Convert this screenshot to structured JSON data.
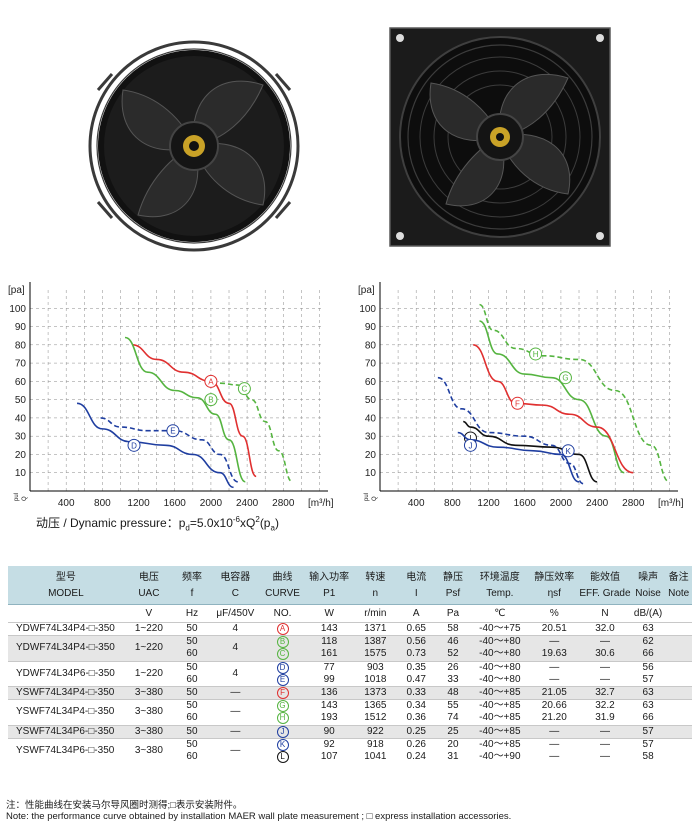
{
  "chart_data": [
    {
      "type": "line",
      "title": "",
      "xlabel": "[m³/h]",
      "ylabel": "[pa]",
      "xticks": [
        "0",
        "400",
        "800",
        "1200",
        "1600",
        "2000",
        "2400",
        "2800"
      ],
      "yticks": [
        "0",
        "10",
        "20",
        "30",
        "40",
        "50",
        "60",
        "70",
        "80",
        "90",
        "100"
      ],
      "xlim": [
        0,
        3250
      ],
      "ylim": [
        0,
        110
      ],
      "y_mark_labels": [
        "pul",
        "Q"
      ],
      "series": [
        {
          "name": "A",
          "color": "#e03030",
          "dash": false,
          "x": [
            1130,
            1400,
            1700,
            2000,
            2200,
            2350,
            2500
          ],
          "y": [
            80,
            72,
            65,
            60,
            48,
            30,
            8
          ],
          "label_at": [
            2000,
            60
          ]
        },
        {
          "name": "B",
          "color": "#55b440",
          "dash": false,
          "x": [
            1050,
            1300,
            1600,
            1850,
            2050,
            2200,
            2380
          ],
          "y": [
            84,
            65,
            55,
            51,
            42,
            28,
            5
          ],
          "label_at": [
            2000,
            50
          ]
        },
        {
          "name": "C",
          "color": "#55b440",
          "dash": true,
          "x": [
            2100,
            2300,
            2450,
            2600,
            2750,
            2900
          ],
          "y": [
            59,
            58,
            50,
            38,
            22,
            5
          ],
          "label_at": [
            2370,
            56
          ]
        },
        {
          "name": "D",
          "color": "#1f3ea0",
          "dash": false,
          "x": [
            520,
            800,
            1100,
            1500,
            1800,
            2100,
            2250
          ],
          "y": [
            48,
            34,
            27,
            25,
            20,
            10,
            2
          ],
          "label_at": [
            1150,
            25
          ]
        },
        {
          "name": "E",
          "color": "#1f3ea0",
          "dash": true,
          "x": [
            780,
            1000,
            1300,
            1600,
            1900,
            2100,
            2300
          ],
          "y": [
            40,
            35,
            33,
            33,
            28,
            20,
            5
          ],
          "label_at": [
            1580,
            33
          ]
        }
      ]
    },
    {
      "type": "line",
      "title": "",
      "xlabel": "[m³/h]",
      "ylabel": "[pa]",
      "xticks": [
        "0",
        "400",
        "800",
        "1200",
        "1600",
        "2000",
        "2400",
        "2800"
      ],
      "yticks": [
        "0",
        "10",
        "20",
        "30",
        "40",
        "50",
        "60",
        "70",
        "80",
        "90",
        "100"
      ],
      "xlim": [
        0,
        3250
      ],
      "ylim": [
        0,
        110
      ],
      "y_mark_labels": [
        "pul",
        "Q"
      ],
      "series": [
        {
          "name": "H",
          "color": "#55b440",
          "dash": true,
          "x": [
            1100,
            1250,
            1500,
            1800,
            2200,
            2600,
            3000,
            3200
          ],
          "y": [
            102,
            88,
            78,
            74,
            72,
            55,
            25,
            5
          ],
          "label_at": [
            1720,
            75
          ]
        },
        {
          "name": "G",
          "color": "#55b440",
          "dash": false,
          "x": [
            1100,
            1300,
            1600,
            1900,
            2200,
            2500,
            2700
          ],
          "y": [
            93,
            75,
            64,
            62,
            50,
            30,
            10
          ],
          "label_at": [
            2050,
            62
          ]
        },
        {
          "name": "F",
          "color": "#e03030",
          "dash": false,
          "x": [
            1030,
            1300,
            1500,
            1800,
            2100,
            2400,
            2800
          ],
          "y": [
            80,
            60,
            48,
            47,
            42,
            35,
            10
          ],
          "label_at": [
            1520,
            48
          ]
        },
        {
          "name": "I",
          "color": "#111111",
          "dash": false,
          "x": [
            920,
            1000,
            1200,
            1500,
            1900,
            2200,
            2400
          ],
          "y": [
            38,
            35,
            30,
            25,
            24,
            20,
            5
          ],
          "label_at": [
            1000,
            29
          ]
        },
        {
          "name": "J",
          "color": "#1f3ea0",
          "dash": false,
          "x": [
            860,
            1000,
            1300,
            1700,
            2000,
            2200
          ],
          "y": [
            32,
            28,
            24,
            22,
            20,
            5
          ],
          "label_at": [
            1000,
            25
          ]
        },
        {
          "name": "K",
          "color": "#1f3ea0",
          "dash": true,
          "x": [
            640,
            900,
            1200,
            1600,
            1900,
            2100,
            2250
          ],
          "y": [
            62,
            45,
            32,
            30,
            25,
            15,
            4
          ],
          "label_at": [
            2080,
            22
          ]
        }
      ]
    }
  ],
  "formula": {
    "label": "动压 / Dynamic pressure：",
    "expr": "p",
    "sub_d": "d",
    "eq": "=5.0x10",
    "sup_exp": "-6",
    "expr2": "xQ",
    "sup_2": "2",
    "expr3": "(p",
    "sub_a": "a",
    "close": ")"
  },
  "table": {
    "head_cn": [
      "型号",
      "电压",
      "频率",
      "电容器",
      "曲线",
      "输入功率",
      "转速",
      "电流",
      "静压",
      "环境温度",
      "静压效率",
      "能效值",
      "噪声",
      "备注"
    ],
    "head_en": [
      "MODEL",
      "UAC",
      "f",
      "C",
      "CURVE",
      "P1",
      "n",
      "I",
      "Psf",
      "Temp.",
      "ηsf",
      "EFF. Grade",
      "Noise",
      "Note"
    ],
    "units": [
      "",
      "V",
      "Hz",
      "μF/450V",
      "NO.",
      "W",
      "r/min",
      "A",
      "Pa",
      "℃",
      "%",
      "N",
      "dB/(A)",
      ""
    ],
    "groups": [
      {
        "model": "YDWF74L34P4-□-350",
        "voltage": "1~220",
        "cap": "4",
        "gray": false,
        "rows": [
          {
            "f": "50",
            "curve": "A",
            "color": "#e03030",
            "p1": "143",
            "n": "1371",
            "i": "0.65",
            "pa": "58",
            "temp": "-40～+75",
            "eff": "20.51",
            "grade": "32.0",
            "noise": "63"
          }
        ]
      },
      {
        "model": "YDWF74L34P4-□-350",
        "voltage": "1~220",
        "cap": "4",
        "gray": true,
        "rows": [
          {
            "f": "50",
            "curve": "B",
            "color": "#55b440",
            "p1": "118",
            "n": "1387",
            "i": "0.56",
            "pa": "46",
            "temp": "-40～+80",
            "eff": "—",
            "grade": "—",
            "noise": "62"
          },
          {
            "f": "60",
            "curve": "C",
            "color": "#55b440",
            "p1": "161",
            "n": "1575",
            "i": "0.73",
            "pa": "52",
            "temp": "-40～+80",
            "eff": "19.63",
            "grade": "30.6",
            "noise": "66"
          }
        ]
      },
      {
        "model": "YDWF74L34P6-□-350",
        "voltage": "1~220",
        "cap": "4",
        "gray": false,
        "rows": [
          {
            "f": "50",
            "curve": "D",
            "color": "#1f3ea0",
            "p1": "77",
            "n": "903",
            "i": "0.35",
            "pa": "26",
            "temp": "-40～+80",
            "eff": "—",
            "grade": "—",
            "noise": "56"
          },
          {
            "f": "60",
            "curve": "E",
            "color": "#1f3ea0",
            "p1": "99",
            "n": "1018",
            "i": "0.47",
            "pa": "33",
            "temp": "-40～+80",
            "eff": "—",
            "grade": "—",
            "noise": "57"
          }
        ]
      },
      {
        "model": "YSWF74L34P4-□-350",
        "voltage": "3~380",
        "cap": "—",
        "gray": true,
        "rows": [
          {
            "f": "50",
            "curve": "F",
            "color": "#e03030",
            "p1": "136",
            "n": "1373",
            "i": "0.33",
            "pa": "48",
            "temp": "-40～+85",
            "eff": "21.05",
            "grade": "32.7",
            "noise": "63"
          }
        ]
      },
      {
        "model": "YSWF74L34P4-□-350",
        "voltage": "3~380",
        "cap": "—",
        "gray": false,
        "rows": [
          {
            "f": "50",
            "curve": "G",
            "color": "#55b440",
            "p1": "143",
            "n": "1365",
            "i": "0.34",
            "pa": "55",
            "temp": "-40～+85",
            "eff": "20.66",
            "grade": "32.2",
            "noise": "63"
          },
          {
            "f": "60",
            "curve": "H",
            "color": "#55b440",
            "p1": "193",
            "n": "1512",
            "i": "0.36",
            "pa": "74",
            "temp": "-40～+85",
            "eff": "21.20",
            "grade": "31.9",
            "noise": "66"
          }
        ]
      },
      {
        "model": "YSWF74L34P6-□-350",
        "voltage": "3~380",
        "cap": "—",
        "gray": true,
        "rows": [
          {
            "f": "50",
            "curve": "J",
            "color": "#1f3ea0",
            "p1": "90",
            "n": "922",
            "i": "0.25",
            "pa": "25",
            "temp": "-40～+85",
            "eff": "—",
            "grade": "—",
            "noise": "57"
          }
        ]
      },
      {
        "model": "YSWF74L34P6-□-350",
        "voltage": "3~380",
        "cap": "—",
        "gray": false,
        "rows": [
          {
            "f": "50",
            "curve": "K",
            "color": "#1f3ea0",
            "p1": "92",
            "n": "918",
            "i": "0.26",
            "pa": "20",
            "temp": "-40～+85",
            "eff": "—",
            "grade": "—",
            "noise": "57"
          },
          {
            "f": "60",
            "curve": "L",
            "color": "#111111",
            "p1": "107",
            "n": "1041",
            "i": "0.24",
            "pa": "31",
            "temp": "-40～+90",
            "eff": "—",
            "grade": "—",
            "noise": "58"
          }
        ]
      }
    ]
  },
  "notes": {
    "cn": "注：性能曲线在安装马尔导风圈时测得;□表示安装附件。",
    "en": "Note: the performance curve obtained by installation MAER wall plate measurement ; □  express installation accessories."
  }
}
